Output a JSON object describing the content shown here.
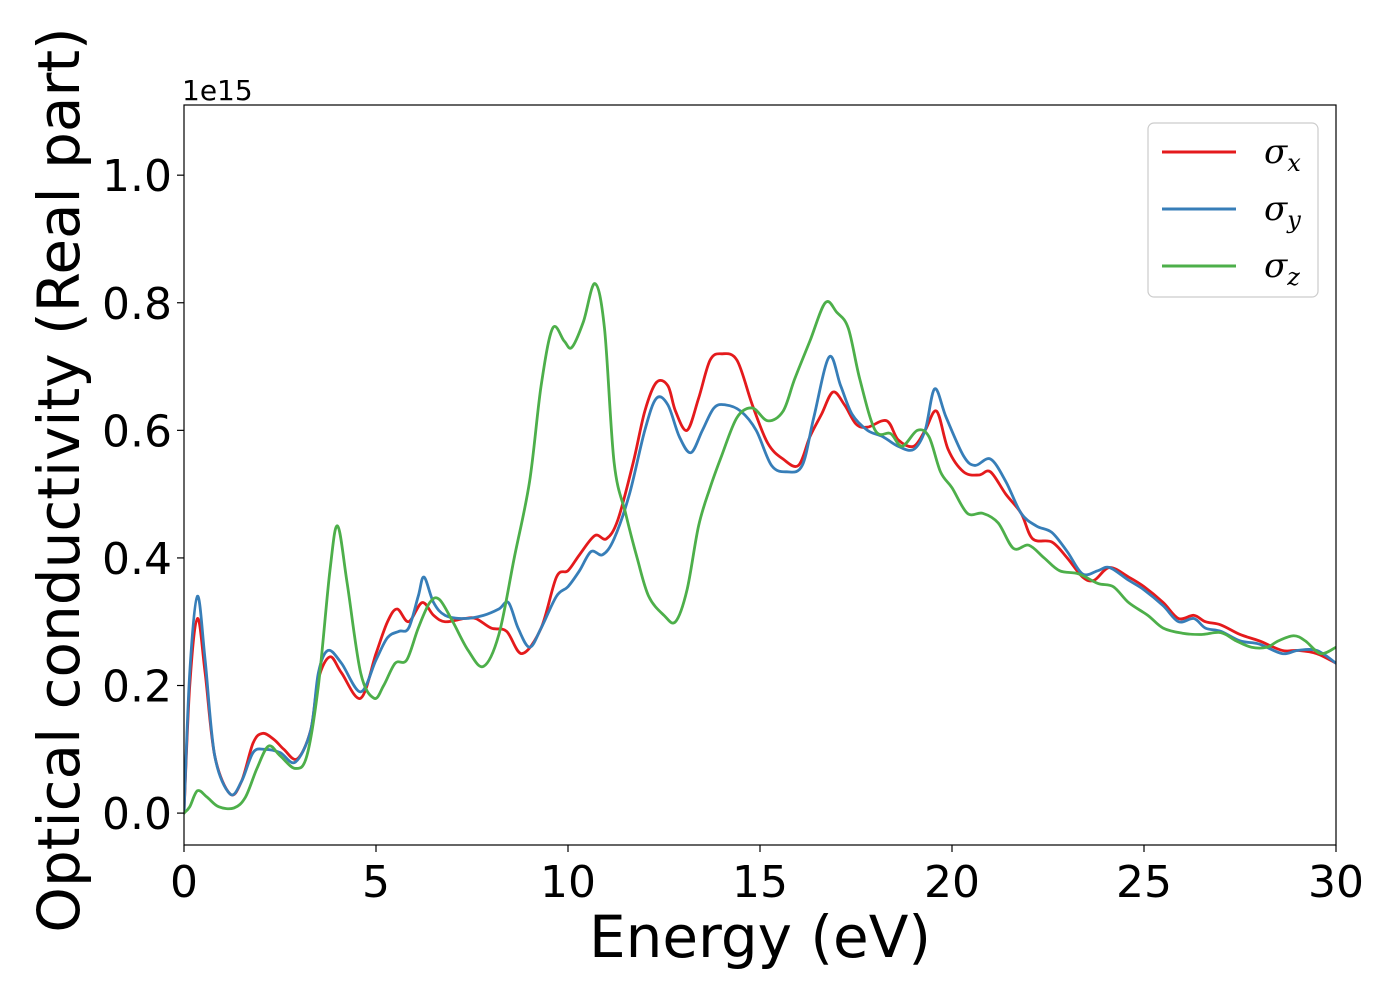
{
  "chart_data": {
    "type": "line",
    "xlabel": "Energy (eV)",
    "ylabel": "Optical conductivity (Real part)",
    "y_offset_label": "1e15",
    "xlim": [
      0,
      30
    ],
    "ylim": [
      -0.05,
      1.11
    ],
    "x_ticks": [
      0,
      5,
      10,
      15,
      20,
      25,
      30
    ],
    "x_tick_labels": [
      "0",
      "5",
      "10",
      "15",
      "20",
      "25",
      "30"
    ],
    "y_ticks": [
      0.0,
      0.2,
      0.4,
      0.6,
      0.8,
      1.0
    ],
    "y_tick_labels": [
      "0.0",
      "0.2",
      "0.4",
      "0.6",
      "0.8",
      "1.0"
    ],
    "grid": false,
    "legend_position": "top-right",
    "series": [
      {
        "name": "σx",
        "legend_symbol": "σ",
        "legend_subscript": "x",
        "color": "#e41a1c",
        "points": [
          [
            0,
            0.0
          ],
          [
            0.15,
            0.2
          ],
          [
            0.35,
            0.305
          ],
          [
            0.55,
            0.22
          ],
          [
            0.8,
            0.09
          ],
          [
            1.2,
            0.03
          ],
          [
            1.5,
            0.05
          ],
          [
            1.8,
            0.11
          ],
          [
            2.05,
            0.125
          ],
          [
            2.35,
            0.115
          ],
          [
            2.6,
            0.1
          ],
          [
            2.95,
            0.085
          ],
          [
            3.3,
            0.13
          ],
          [
            3.5,
            0.21
          ],
          [
            3.8,
            0.245
          ],
          [
            4.1,
            0.22
          ],
          [
            4.6,
            0.18
          ],
          [
            5.0,
            0.25
          ],
          [
            5.3,
            0.3
          ],
          [
            5.55,
            0.32
          ],
          [
            5.85,
            0.3
          ],
          [
            6.2,
            0.33
          ],
          [
            6.5,
            0.31
          ],
          [
            6.8,
            0.3
          ],
          [
            7.3,
            0.305
          ],
          [
            7.6,
            0.305
          ],
          [
            8.0,
            0.29
          ],
          [
            8.4,
            0.285
          ],
          [
            8.8,
            0.25
          ],
          [
            9.3,
            0.29
          ],
          [
            9.7,
            0.37
          ],
          [
            10.0,
            0.38
          ],
          [
            10.3,
            0.405
          ],
          [
            10.7,
            0.435
          ],
          [
            11.0,
            0.43
          ],
          [
            11.3,
            0.46
          ],
          [
            11.7,
            0.55
          ],
          [
            12.0,
            0.63
          ],
          [
            12.3,
            0.675
          ],
          [
            12.6,
            0.67
          ],
          [
            12.8,
            0.63
          ],
          [
            13.1,
            0.6
          ],
          [
            13.4,
            0.65
          ],
          [
            13.7,
            0.71
          ],
          [
            14.0,
            0.72
          ],
          [
            14.4,
            0.71
          ],
          [
            14.8,
            0.64
          ],
          [
            15.2,
            0.58
          ],
          [
            15.6,
            0.555
          ],
          [
            16.0,
            0.545
          ],
          [
            16.3,
            0.59
          ],
          [
            16.6,
            0.625
          ],
          [
            16.9,
            0.66
          ],
          [
            17.2,
            0.64
          ],
          [
            17.5,
            0.61
          ],
          [
            17.8,
            0.605
          ],
          [
            18.3,
            0.615
          ],
          [
            18.6,
            0.585
          ],
          [
            19.0,
            0.575
          ],
          [
            19.3,
            0.6
          ],
          [
            19.6,
            0.63
          ],
          [
            19.9,
            0.57
          ],
          [
            20.3,
            0.535
          ],
          [
            20.7,
            0.53
          ],
          [
            21.0,
            0.535
          ],
          [
            21.4,
            0.5
          ],
          [
            21.8,
            0.47
          ],
          [
            22.1,
            0.43
          ],
          [
            22.6,
            0.425
          ],
          [
            23.0,
            0.4
          ],
          [
            23.4,
            0.37
          ],
          [
            23.7,
            0.365
          ],
          [
            24.1,
            0.385
          ],
          [
            24.6,
            0.37
          ],
          [
            25.0,
            0.355
          ],
          [
            25.5,
            0.33
          ],
          [
            25.9,
            0.305
          ],
          [
            26.3,
            0.31
          ],
          [
            26.6,
            0.3
          ],
          [
            27.0,
            0.295
          ],
          [
            27.5,
            0.28
          ],
          [
            28.0,
            0.27
          ],
          [
            28.6,
            0.255
          ],
          [
            29.0,
            0.255
          ],
          [
            29.5,
            0.25
          ],
          [
            30.0,
            0.235
          ]
        ]
      },
      {
        "name": "σy",
        "legend_symbol": "σ",
        "legend_subscript": "y",
        "color": "#377eb8",
        "points": [
          [
            0,
            0.0
          ],
          [
            0.15,
            0.22
          ],
          [
            0.35,
            0.34
          ],
          [
            0.55,
            0.24
          ],
          [
            0.8,
            0.09
          ],
          [
            1.2,
            0.03
          ],
          [
            1.5,
            0.05
          ],
          [
            1.8,
            0.095
          ],
          [
            2.1,
            0.1
          ],
          [
            2.5,
            0.095
          ],
          [
            2.9,
            0.08
          ],
          [
            3.3,
            0.13
          ],
          [
            3.5,
            0.22
          ],
          [
            3.75,
            0.255
          ],
          [
            4.1,
            0.235
          ],
          [
            4.6,
            0.19
          ],
          [
            5.0,
            0.24
          ],
          [
            5.3,
            0.275
          ],
          [
            5.6,
            0.285
          ],
          [
            5.85,
            0.29
          ],
          [
            6.1,
            0.34
          ],
          [
            6.25,
            0.37
          ],
          [
            6.5,
            0.33
          ],
          [
            6.8,
            0.31
          ],
          [
            7.3,
            0.305
          ],
          [
            7.8,
            0.31
          ],
          [
            8.2,
            0.32
          ],
          [
            8.45,
            0.33
          ],
          [
            8.7,
            0.29
          ],
          [
            9.0,
            0.26
          ],
          [
            9.3,
            0.29
          ],
          [
            9.7,
            0.34
          ],
          [
            10.0,
            0.355
          ],
          [
            10.3,
            0.38
          ],
          [
            10.6,
            0.41
          ],
          [
            10.9,
            0.405
          ],
          [
            11.2,
            0.43
          ],
          [
            11.6,
            0.5
          ],
          [
            12.0,
            0.6
          ],
          [
            12.3,
            0.65
          ],
          [
            12.6,
            0.64
          ],
          [
            12.9,
            0.59
          ],
          [
            13.2,
            0.565
          ],
          [
            13.5,
            0.6
          ],
          [
            13.8,
            0.635
          ],
          [
            14.1,
            0.64
          ],
          [
            14.5,
            0.63
          ],
          [
            14.9,
            0.6
          ],
          [
            15.3,
            0.545
          ],
          [
            15.7,
            0.535
          ],
          [
            16.1,
            0.545
          ],
          [
            16.4,
            0.62
          ],
          [
            16.8,
            0.715
          ],
          [
            17.1,
            0.67
          ],
          [
            17.4,
            0.625
          ],
          [
            17.8,
            0.6
          ],
          [
            18.2,
            0.59
          ],
          [
            18.6,
            0.575
          ],
          [
            19.0,
            0.57
          ],
          [
            19.3,
            0.6
          ],
          [
            19.55,
            0.665
          ],
          [
            19.85,
            0.62
          ],
          [
            20.3,
            0.56
          ],
          [
            20.6,
            0.545
          ],
          [
            21.0,
            0.555
          ],
          [
            21.4,
            0.52
          ],
          [
            21.8,
            0.47
          ],
          [
            22.2,
            0.45
          ],
          [
            22.6,
            0.44
          ],
          [
            23.0,
            0.41
          ],
          [
            23.4,
            0.375
          ],
          [
            23.8,
            0.38
          ],
          [
            24.1,
            0.385
          ],
          [
            24.6,
            0.365
          ],
          [
            25.0,
            0.35
          ],
          [
            25.5,
            0.325
          ],
          [
            25.9,
            0.3
          ],
          [
            26.3,
            0.305
          ],
          [
            26.6,
            0.29
          ],
          [
            27.0,
            0.285
          ],
          [
            27.5,
            0.27
          ],
          [
            28.0,
            0.265
          ],
          [
            28.6,
            0.25
          ],
          [
            29.0,
            0.255
          ],
          [
            29.5,
            0.255
          ],
          [
            30.0,
            0.235
          ]
        ]
      },
      {
        "name": "σz",
        "legend_symbol": "σ",
        "legend_subscript": "z",
        "color": "#4daf4a",
        "points": [
          [
            0,
            0.0
          ],
          [
            0.15,
            0.01
          ],
          [
            0.35,
            0.035
          ],
          [
            0.6,
            0.025
          ],
          [
            0.9,
            0.01
          ],
          [
            1.3,
            0.008
          ],
          [
            1.6,
            0.025
          ],
          [
            1.9,
            0.07
          ],
          [
            2.2,
            0.105
          ],
          [
            2.5,
            0.09
          ],
          [
            2.9,
            0.07
          ],
          [
            3.2,
            0.09
          ],
          [
            3.5,
            0.2
          ],
          [
            3.8,
            0.38
          ],
          [
            4.0,
            0.45
          ],
          [
            4.25,
            0.36
          ],
          [
            4.6,
            0.22
          ],
          [
            4.95,
            0.18
          ],
          [
            5.2,
            0.2
          ],
          [
            5.5,
            0.235
          ],
          [
            5.8,
            0.24
          ],
          [
            6.1,
            0.29
          ],
          [
            6.4,
            0.33
          ],
          [
            6.65,
            0.335
          ],
          [
            7.0,
            0.3
          ],
          [
            7.4,
            0.255
          ],
          [
            7.8,
            0.23
          ],
          [
            8.2,
            0.28
          ],
          [
            8.6,
            0.4
          ],
          [
            9.0,
            0.52
          ],
          [
            9.3,
            0.67
          ],
          [
            9.6,
            0.76
          ],
          [
            9.9,
            0.74
          ],
          [
            10.1,
            0.73
          ],
          [
            10.4,
            0.77
          ],
          [
            10.7,
            0.83
          ],
          [
            10.95,
            0.76
          ],
          [
            11.2,
            0.55
          ],
          [
            11.5,
            0.47
          ],
          [
            11.8,
            0.4
          ],
          [
            12.1,
            0.34
          ],
          [
            12.5,
            0.31
          ],
          [
            12.8,
            0.3
          ],
          [
            13.1,
            0.35
          ],
          [
            13.4,
            0.45
          ],
          [
            13.7,
            0.51
          ],
          [
            14.0,
            0.56
          ],
          [
            14.4,
            0.62
          ],
          [
            14.8,
            0.635
          ],
          [
            15.2,
            0.615
          ],
          [
            15.6,
            0.63
          ],
          [
            15.9,
            0.68
          ],
          [
            16.3,
            0.74
          ],
          [
            16.7,
            0.8
          ],
          [
            17.0,
            0.785
          ],
          [
            17.3,
            0.76
          ],
          [
            17.6,
            0.68
          ],
          [
            18.0,
            0.6
          ],
          [
            18.4,
            0.595
          ],
          [
            18.7,
            0.575
          ],
          [
            19.1,
            0.6
          ],
          [
            19.4,
            0.59
          ],
          [
            19.7,
            0.535
          ],
          [
            20.0,
            0.51
          ],
          [
            20.4,
            0.47
          ],
          [
            20.8,
            0.47
          ],
          [
            21.2,
            0.455
          ],
          [
            21.6,
            0.415
          ],
          [
            22.0,
            0.42
          ],
          [
            22.4,
            0.4
          ],
          [
            22.8,
            0.38
          ],
          [
            23.3,
            0.375
          ],
          [
            23.8,
            0.36
          ],
          [
            24.2,
            0.355
          ],
          [
            24.6,
            0.33
          ],
          [
            25.1,
            0.31
          ],
          [
            25.5,
            0.29
          ],
          [
            26.0,
            0.282
          ],
          [
            26.5,
            0.28
          ],
          [
            27.0,
            0.283
          ],
          [
            27.4,
            0.27
          ],
          [
            27.8,
            0.26
          ],
          [
            28.2,
            0.26
          ],
          [
            28.5,
            0.27
          ],
          [
            28.9,
            0.278
          ],
          [
            29.2,
            0.27
          ],
          [
            29.6,
            0.25
          ],
          [
            30.0,
            0.26
          ]
        ]
      }
    ]
  }
}
